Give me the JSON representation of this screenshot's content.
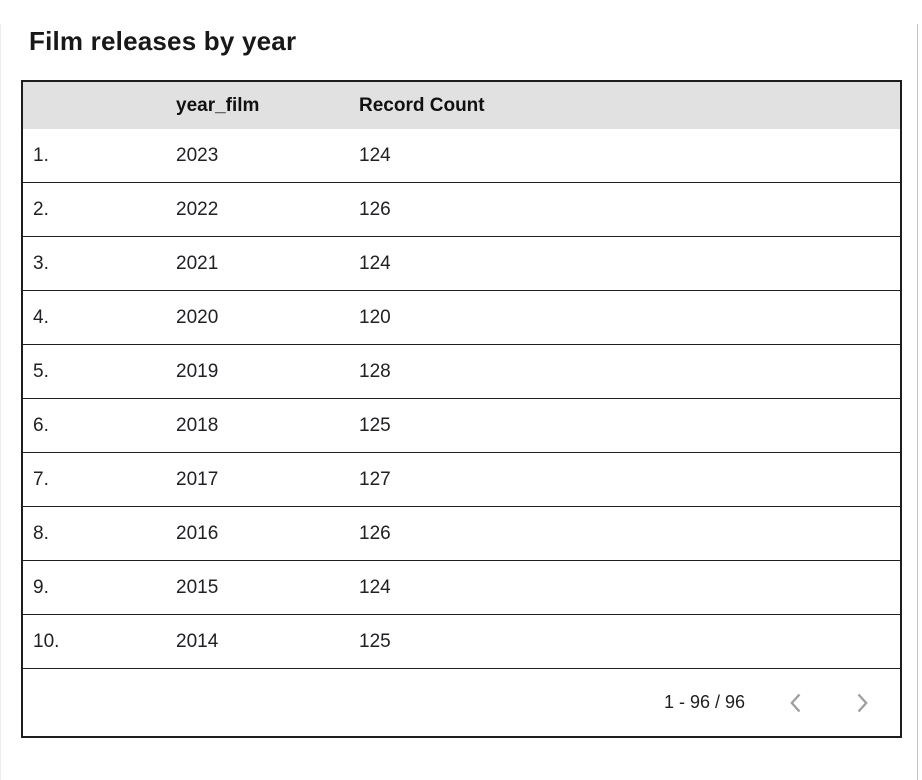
{
  "title": "Film releases by year",
  "table": {
    "columns": {
      "index": "",
      "year_film": "year_film",
      "record_count": "Record Count"
    },
    "rows": [
      {
        "index": "1.",
        "year_film": "2023",
        "record_count": "124"
      },
      {
        "index": "2.",
        "year_film": "2022",
        "record_count": "126"
      },
      {
        "index": "3.",
        "year_film": "2021",
        "record_count": "124"
      },
      {
        "index": "4.",
        "year_film": "2020",
        "record_count": "120"
      },
      {
        "index": "5.",
        "year_film": "2019",
        "record_count": "128"
      },
      {
        "index": "6.",
        "year_film": "2018",
        "record_count": "125"
      },
      {
        "index": "7.",
        "year_film": "2017",
        "record_count": "127"
      },
      {
        "index": "8.",
        "year_film": "2016",
        "record_count": "126"
      },
      {
        "index": "9.",
        "year_film": "2015",
        "record_count": "124"
      },
      {
        "index": "10.",
        "year_film": "2014",
        "record_count": "125"
      }
    ]
  },
  "pagination": {
    "range": "1 - 96 / 96",
    "prev_icon": "chevron-left-icon",
    "next_icon": "chevron-right-icon"
  },
  "chart_data": {
    "type": "table",
    "title": "Film releases by year",
    "columns": [
      "year_film",
      "Record Count"
    ],
    "rows": [
      [
        2023,
        124
      ],
      [
        2022,
        126
      ],
      [
        2021,
        124
      ],
      [
        2020,
        120
      ],
      [
        2019,
        128
      ],
      [
        2018,
        125
      ],
      [
        2017,
        127
      ],
      [
        2016,
        126
      ],
      [
        2015,
        124
      ],
      [
        2014,
        125
      ]
    ],
    "total_records": 96,
    "visible_range": "1 - 96 / 96"
  },
  "colors": {
    "header_bg": "#e1e1e1",
    "table_border": "#1d1d1d",
    "text": "#202124",
    "chevron": "#9e9e9e",
    "card_border": "#c6c6c6"
  }
}
